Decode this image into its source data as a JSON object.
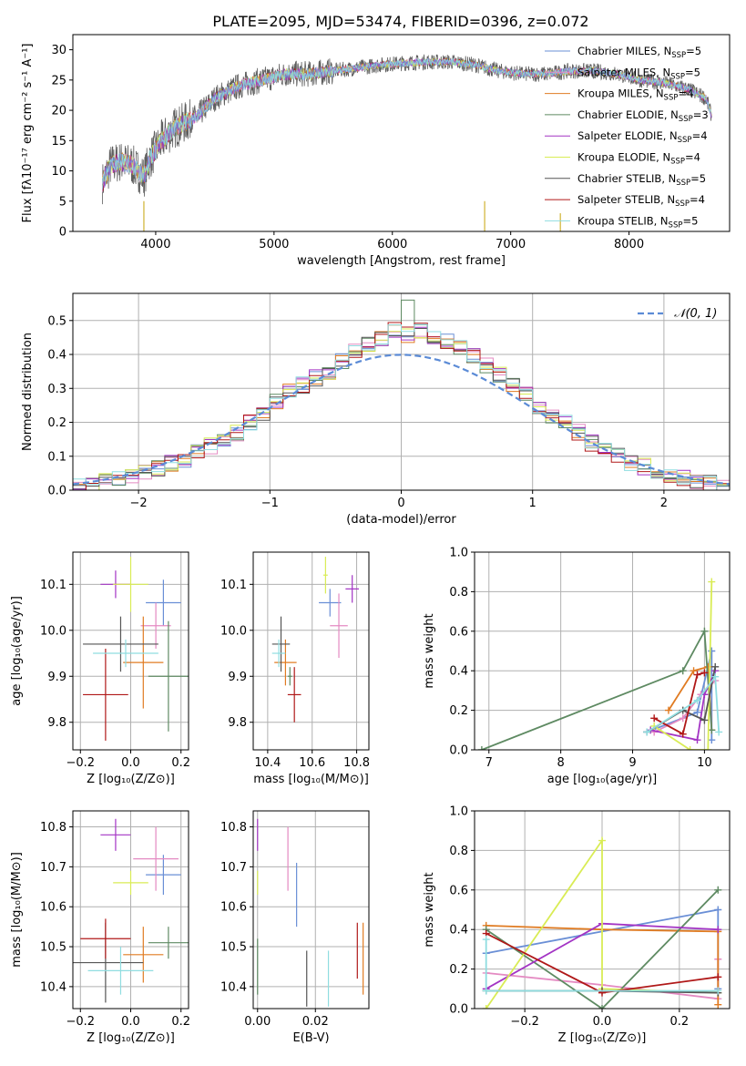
{
  "title": "PLATE=2095, MJD=53474, FIBERID=0396, z=0.072",
  "colors": {
    "Chabrier MILES": "#6a8fd6",
    "Salpeter MILES": "#e48ac2",
    "Kroupa MILES": "#e07b22",
    "Chabrier ELODIE": "#5e8a62",
    "Salpeter ELODIE": "#a334c4",
    "Kroupa ELODIE": "#d9ec55",
    "Chabrier STELIB": "#555555",
    "Salpeter STELIB": "#b01818",
    "Kroupa STELIB": "#8fdde0"
  },
  "chart_data": [
    {
      "type": "line",
      "id": "spectrum",
      "title": "PLATE=2095, MJD=53474, FIBERID=0396, z=0.072",
      "xlabel": "wavelength [Angstrom, rest frame]",
      "ylabel": "Flux [fλ10⁻¹⁷ erg cm⁻² s⁻¹ A⁻¹]",
      "xlim": [
        3300,
        8850
      ],
      "ylim": [
        0,
        32.5
      ],
      "xticks": [
        4000,
        5000,
        6000,
        7000,
        8000
      ],
      "yticks": [
        0,
        5,
        10,
        15,
        20,
        25,
        30
      ],
      "legend_position": "right",
      "continuum": [
        [
          3550,
          8
        ],
        [
          3620,
          11
        ],
        [
          3700,
          11.5
        ],
        [
          3800,
          11
        ],
        [
          3900,
          9
        ],
        [
          3950,
          12
        ],
        [
          4050,
          15
        ],
        [
          4150,
          17
        ],
        [
          4250,
          18
        ],
        [
          4350,
          19
        ],
        [
          4500,
          22
        ],
        [
          4700,
          24
        ],
        [
          4900,
          25
        ],
        [
          5100,
          26
        ],
        [
          5300,
          26
        ],
        [
          5500,
          26.5
        ],
        [
          5700,
          27
        ],
        [
          5900,
          27.5
        ],
        [
          6100,
          27.8
        ],
        [
          6300,
          28
        ],
        [
          6500,
          28
        ],
        [
          6700,
          27.5
        ],
        [
          6900,
          26.5
        ],
        [
          7100,
          26
        ],
        [
          7300,
          26
        ],
        [
          7500,
          26.5
        ],
        [
          7700,
          26.5
        ],
        [
          7900,
          26
        ],
        [
          8100,
          25
        ],
        [
          8300,
          24.5
        ],
        [
          8500,
          23.5
        ],
        [
          8650,
          22
        ],
        [
          8700,
          19
        ]
      ],
      "series": [
        {
          "name": "Chabrier MILES",
          "legend_label": "Chabrier MILES, N",
          "legend_n": "=5"
        },
        {
          "name": "Salpeter MILES",
          "legend_label": "Salpeter MILES, N",
          "legend_n": "=5"
        },
        {
          "name": "Kroupa MILES",
          "legend_label": "Kroupa MILES, N",
          "legend_n": "=4"
        },
        {
          "name": "Chabrier ELODIE",
          "legend_label": "Chabrier ELODIE, N",
          "legend_n": "=3"
        },
        {
          "name": "Salpeter ELODIE",
          "legend_label": "Salpeter ELODIE, N",
          "legend_n": "=4"
        },
        {
          "name": "Kroupa ELODIE",
          "legend_label": "Kroupa ELODIE, N",
          "legend_n": "=4"
        },
        {
          "name": "Chabrier STELIB",
          "legend_label": "Chabrier STELIB, N",
          "legend_n": "=5"
        },
        {
          "name": "Salpeter STELIB",
          "legend_label": "Salpeter STELIB, N",
          "legend_n": "=4"
        },
        {
          "name": "Kroupa STELIB",
          "legend_label": "Kroupa STELIB, N",
          "legend_n": "=5"
        }
      ],
      "legend_subscript": "SSP",
      "drops": [
        {
          "x": 3900,
          "y": 5
        },
        {
          "x": 6780,
          "y": 5
        },
        {
          "x": 7420,
          "y": 3
        }
      ]
    },
    {
      "type": "histogram",
      "id": "residuals",
      "xlabel": "(data-model)/error",
      "ylabel": "Normed distribution",
      "xlim": [
        -2.5,
        2.5
      ],
      "ylim": [
        0,
        0.58
      ],
      "xticks": [
        -2,
        -1,
        0,
        1,
        2
      ],
      "yticks": [
        0.0,
        0.1,
        0.2,
        0.3,
        0.4,
        0.5
      ],
      "bin_start": -2.5,
      "bin_width": 0.1,
      "base_values": [
        0.01,
        0.02,
        0.025,
        0.03,
        0.04,
        0.05,
        0.065,
        0.08,
        0.09,
        0.11,
        0.13,
        0.15,
        0.17,
        0.2,
        0.22,
        0.26,
        0.29,
        0.31,
        0.33,
        0.35,
        0.38,
        0.41,
        0.43,
        0.45,
        0.47,
        0.46,
        0.47,
        0.45,
        0.44,
        0.42,
        0.4,
        0.37,
        0.34,
        0.31,
        0.28,
        0.25,
        0.22,
        0.2,
        0.17,
        0.14,
        0.12,
        0.1,
        0.08,
        0.07,
        0.055,
        0.045,
        0.035,
        0.025,
        0.02,
        0.01
      ],
      "gaussian_label": "𝒩(0, 1)",
      "gaussian_color": "#5b8bd6",
      "grid": true
    },
    {
      "type": "errorbar",
      "id": "age-vs-Z",
      "xlabel": "Z [log₁₀(Z/Z⊙)]",
      "ylabel": "age  [log₁₀(age/yr)]",
      "xlim": [
        -0.23,
        0.23
      ],
      "ylim": [
        9.74,
        10.17
      ],
      "xticks": [
        -0.2,
        0.0,
        0.2
      ],
      "yticks": [
        9.8,
        9.9,
        10.0,
        10.1
      ],
      "points": [
        {
          "name": "Chabrier MILES",
          "x": 0.13,
          "xerr": 0.07,
          "y": 10.06,
          "yerr": 0.05
        },
        {
          "name": "Salpeter MILES",
          "x": 0.1,
          "xerr": 0.06,
          "y": 10.01,
          "yerr": 0.05
        },
        {
          "name": "Kroupa MILES",
          "x": 0.05,
          "xerr": 0.08,
          "y": 9.93,
          "yerr": 0.1
        },
        {
          "name": "Chabrier ELODIE",
          "x": 0.15,
          "xerr": 0.08,
          "y": 9.9,
          "yerr": 0.12
        },
        {
          "name": "Salpeter ELODIE",
          "x": -0.06,
          "xerr": 0.06,
          "y": 10.1,
          "yerr": 0.03
        },
        {
          "name": "Kroupa ELODIE",
          "x": 0.0,
          "xerr": 0.07,
          "y": 10.1,
          "yerr": 0.06
        },
        {
          "name": "Chabrier STELIB",
          "x": -0.04,
          "xerr": 0.15,
          "y": 9.97,
          "yerr": 0.06
        },
        {
          "name": "Salpeter STELIB",
          "x": -0.1,
          "xerr": 0.09,
          "y": 9.86,
          "yerr": 0.1
        },
        {
          "name": "Kroupa STELIB",
          "x": -0.02,
          "xerr": 0.13,
          "y": 9.95,
          "yerr": 0.03
        }
      ]
    },
    {
      "type": "errorbar",
      "id": "age-vs-mass",
      "xlabel": "mass [log₁₀(M/M⊙)]",
      "ylabel": "",
      "xlim": [
        10.335,
        10.855
      ],
      "ylim": [
        9.74,
        10.17
      ],
      "xticks": [
        10.4,
        10.6,
        10.8
      ],
      "yticks": [
        9.8,
        9.9,
        10.0,
        10.1
      ],
      "points": [
        {
          "name": "Chabrier MILES",
          "x": 10.68,
          "xerr": 0.05,
          "y": 10.06,
          "yerr": 0.03
        },
        {
          "name": "Salpeter MILES",
          "x": 10.72,
          "xerr": 0.04,
          "y": 10.01,
          "yerr": 0.07
        },
        {
          "name": "Kroupa MILES",
          "x": 10.48,
          "xerr": 0.05,
          "y": 9.93,
          "yerr": 0.05
        },
        {
          "name": "Chabrier ELODIE",
          "x": 10.5,
          "xerr": 0.01,
          "y": 9.9,
          "yerr": 0.02
        },
        {
          "name": "Salpeter ELODIE",
          "x": 10.78,
          "xerr": 0.03,
          "y": 10.09,
          "yerr": 0.03
        },
        {
          "name": "Kroupa ELODIE",
          "x": 10.66,
          "xerr": 0.01,
          "y": 10.12,
          "yerr": 0.04
        },
        {
          "name": "Chabrier STELIB",
          "x": 10.46,
          "xerr": 0.04,
          "y": 9.97,
          "yerr": 0.06
        },
        {
          "name": "Salpeter STELIB",
          "x": 10.52,
          "xerr": 0.03,
          "y": 9.86,
          "yerr": 0.06
        },
        {
          "name": "Kroupa STELIB",
          "x": 10.45,
          "xerr": 0.03,
          "y": 9.95,
          "yerr": 0.03
        }
      ]
    },
    {
      "type": "line",
      "id": "weight-vs-age",
      "xlabel": "age  [log₁₀(age/yr)]",
      "ylabel": "mass weight",
      "xlim": [
        6.8,
        10.35
      ],
      "ylim": [
        0,
        1.0
      ],
      "xticks": [
        7,
        8,
        9,
        10
      ],
      "yticks": [
        0.0,
        0.2,
        0.4,
        0.6,
        0.8,
        1.0
      ],
      "series": [
        {
          "name": "Chabrier MILES",
          "x": [
            9.2,
            9.9,
            10.1,
            10.1
          ],
          "y": [
            0.09,
            0.19,
            0.5,
            0.05
          ]
        },
        {
          "name": "Salpeter MILES",
          "x": [
            9.3,
            9.7,
            9.95,
            10.15
          ],
          "y": [
            0.09,
            0.16,
            0.28,
            0.35
          ]
        },
        {
          "name": "Kroupa MILES",
          "x": [
            9.5,
            9.85,
            10.05,
            10.1
          ],
          "y": [
            0.2,
            0.4,
            0.42,
            0.1
          ]
        },
        {
          "name": "Chabrier ELODIE",
          "x": [
            6.9,
            9.7,
            10.0,
            10.1
          ],
          "y": [
            0.0,
            0.4,
            0.6,
            0.1
          ]
        },
        {
          "name": "Salpeter ELODIE",
          "x": [
            9.25,
            9.9,
            10.0,
            10.15
          ],
          "y": [
            0.1,
            0.05,
            0.28,
            0.4
          ]
        },
        {
          "name": "Kroupa ELODIE",
          "x": [
            9.3,
            9.8,
            10.05,
            10.1
          ],
          "y": [
            0.12,
            0.0,
            0.0,
            0.85
          ]
        },
        {
          "name": "Chabrier STELIB",
          "x": [
            9.2,
            9.7,
            10.0,
            10.15
          ],
          "y": [
            0.09,
            0.2,
            0.15,
            0.42
          ]
        },
        {
          "name": "Salpeter STELIB",
          "x": [
            9.3,
            9.7,
            9.9,
            10.0
          ],
          "y": [
            0.16,
            0.08,
            0.38,
            0.39
          ]
        },
        {
          "name": "Kroupa STELIB",
          "x": [
            9.2,
            9.9,
            10.15,
            10.2
          ],
          "y": [
            0.09,
            0.25,
            0.37,
            0.09
          ]
        }
      ]
    },
    {
      "type": "errorbar",
      "id": "mass-vs-Z",
      "xlabel": "Z [log₁₀(Z/Z⊙)]",
      "ylabel": "mass [log₁₀(M/M⊙)]",
      "xlim": [
        -0.23,
        0.23
      ],
      "ylim": [
        10.345,
        10.84
      ],
      "xticks": [
        -0.2,
        0.0,
        0.2
      ],
      "yticks": [
        10.4,
        10.5,
        10.6,
        10.7,
        10.8
      ],
      "points": [
        {
          "name": "Chabrier MILES",
          "x": 0.13,
          "xerr": 0.07,
          "y": 10.68,
          "yerr": 0.05
        },
        {
          "name": "Salpeter MILES",
          "x": 0.1,
          "xerr": 0.09,
          "y": 10.72,
          "yerr": 0.08
        },
        {
          "name": "Kroupa MILES",
          "x": 0.05,
          "xerr": 0.08,
          "y": 10.48,
          "yerr": 0.07
        },
        {
          "name": "Chabrier ELODIE",
          "x": 0.15,
          "xerr": 0.08,
          "y": 10.51,
          "yerr": 0.04
        },
        {
          "name": "Salpeter ELODIE",
          "x": -0.06,
          "xerr": 0.06,
          "y": 10.78,
          "yerr": 0.04
        },
        {
          "name": "Kroupa ELODIE",
          "x": 0.0,
          "xerr": 0.07,
          "y": 10.66,
          "yerr": 0.03
        },
        {
          "name": "Chabrier STELIB",
          "x": -0.1,
          "xerr": 0.15,
          "y": 10.46,
          "yerr": 0.1
        },
        {
          "name": "Salpeter STELIB",
          "x": -0.1,
          "xerr": 0.1,
          "y": 10.52,
          "yerr": 0.05
        },
        {
          "name": "Kroupa STELIB",
          "x": -0.04,
          "xerr": 0.13,
          "y": 10.44,
          "yerr": 0.06
        }
      ]
    },
    {
      "type": "errorbar",
      "id": "mass-vs-ebv",
      "xlabel": "E(B-V)",
      "ylabel": "",
      "xlim": [
        -0.0015,
        0.0385
      ],
      "ylim": [
        10.345,
        10.84
      ],
      "xticks": [
        0.0,
        0.02
      ],
      "xtick_labels": [
        "0.00",
        "0.02"
      ],
      "yticks": [
        10.4,
        10.5,
        10.6,
        10.7,
        10.8
      ],
      "points": [
        {
          "name": "Chabrier MILES",
          "x": 0.0135,
          "xerr": 0,
          "y": 10.63,
          "yerr": 0.08
        },
        {
          "name": "Salpeter MILES",
          "x": 0.0105,
          "xerr": 0,
          "y": 10.72,
          "yerr": 0.08
        },
        {
          "name": "Kroupa MILES",
          "x": 0.0365,
          "xerr": 0,
          "y": 10.47,
          "yerr": 0.09
        },
        {
          "name": "Chabrier ELODIE",
          "x": 0.0,
          "xerr": 0,
          "y": 10.45,
          "yerr": 0.07
        },
        {
          "name": "Salpeter ELODIE",
          "x": 0.0,
          "xerr": 0,
          "y": 10.78,
          "yerr": 0.04
        },
        {
          "name": "Kroupa ELODIE",
          "x": 0.0,
          "xerr": 0,
          "y": 10.66,
          "yerr": 0.03
        },
        {
          "name": "Chabrier STELIB",
          "x": 0.017,
          "xerr": 0,
          "y": 10.42,
          "yerr": 0.07
        },
        {
          "name": "Salpeter STELIB",
          "x": 0.0345,
          "xerr": 0,
          "y": 10.49,
          "yerr": 0.07
        },
        {
          "name": "Kroupa STELIB",
          "x": 0.0245,
          "xerr": 0,
          "y": 10.42,
          "yerr": 0.07
        }
      ]
    },
    {
      "type": "line",
      "id": "weight-vs-Z",
      "xlabel": "Z [log₁₀(Z/Z⊙)]",
      "ylabel": "mass weight",
      "xlim": [
        -0.33,
        0.33
      ],
      "ylim": [
        0,
        1.0
      ],
      "xticks": [
        -0.2,
        0.0,
        0.2
      ],
      "yticks": [
        0.0,
        0.2,
        0.4,
        0.6,
        0.8,
        1.0
      ],
      "series": [
        {
          "name": "Chabrier MILES",
          "x": [
            -0.3,
            0.3,
            0.3
          ],
          "y": [
            0.28,
            0.5,
            0.1
          ]
        },
        {
          "name": "Salpeter MILES",
          "x": [
            -0.3,
            0.0,
            0.3,
            0.3
          ],
          "y": [
            0.18,
            0.12,
            0.05,
            0.25
          ]
        },
        {
          "name": "Kroupa MILES",
          "x": [
            -0.3,
            0.0,
            0.3,
            0.3
          ],
          "y": [
            0.42,
            0.4,
            0.39,
            0.02
          ]
        },
        {
          "name": "Chabrier ELODIE",
          "x": [
            -0.3,
            0.0,
            0.3
          ],
          "y": [
            0.4,
            0.0,
            0.6
          ]
        },
        {
          "name": "Salpeter ELODIE",
          "x": [
            -0.3,
            0.0,
            0.3
          ],
          "y": [
            0.1,
            0.43,
            0.4
          ]
        },
        {
          "name": "Kroupa ELODIE",
          "x": [
            -0.3,
            0.0,
            0.0,
            0.3
          ],
          "y": [
            0.0,
            0.85,
            0.1,
            0.08
          ]
        },
        {
          "name": "Chabrier STELIB",
          "x": [
            -0.3,
            0.0,
            0.3
          ],
          "y": [
            0.09,
            0.09,
            0.08
          ]
        },
        {
          "name": "Salpeter STELIB",
          "x": [
            -0.3,
            0.0,
            0.3
          ],
          "y": [
            0.38,
            0.08,
            0.16
          ]
        },
        {
          "name": "Kroupa STELIB",
          "x": [
            -0.3,
            -0.3,
            0.3
          ],
          "y": [
            0.35,
            0.09,
            0.09
          ]
        }
      ]
    }
  ]
}
